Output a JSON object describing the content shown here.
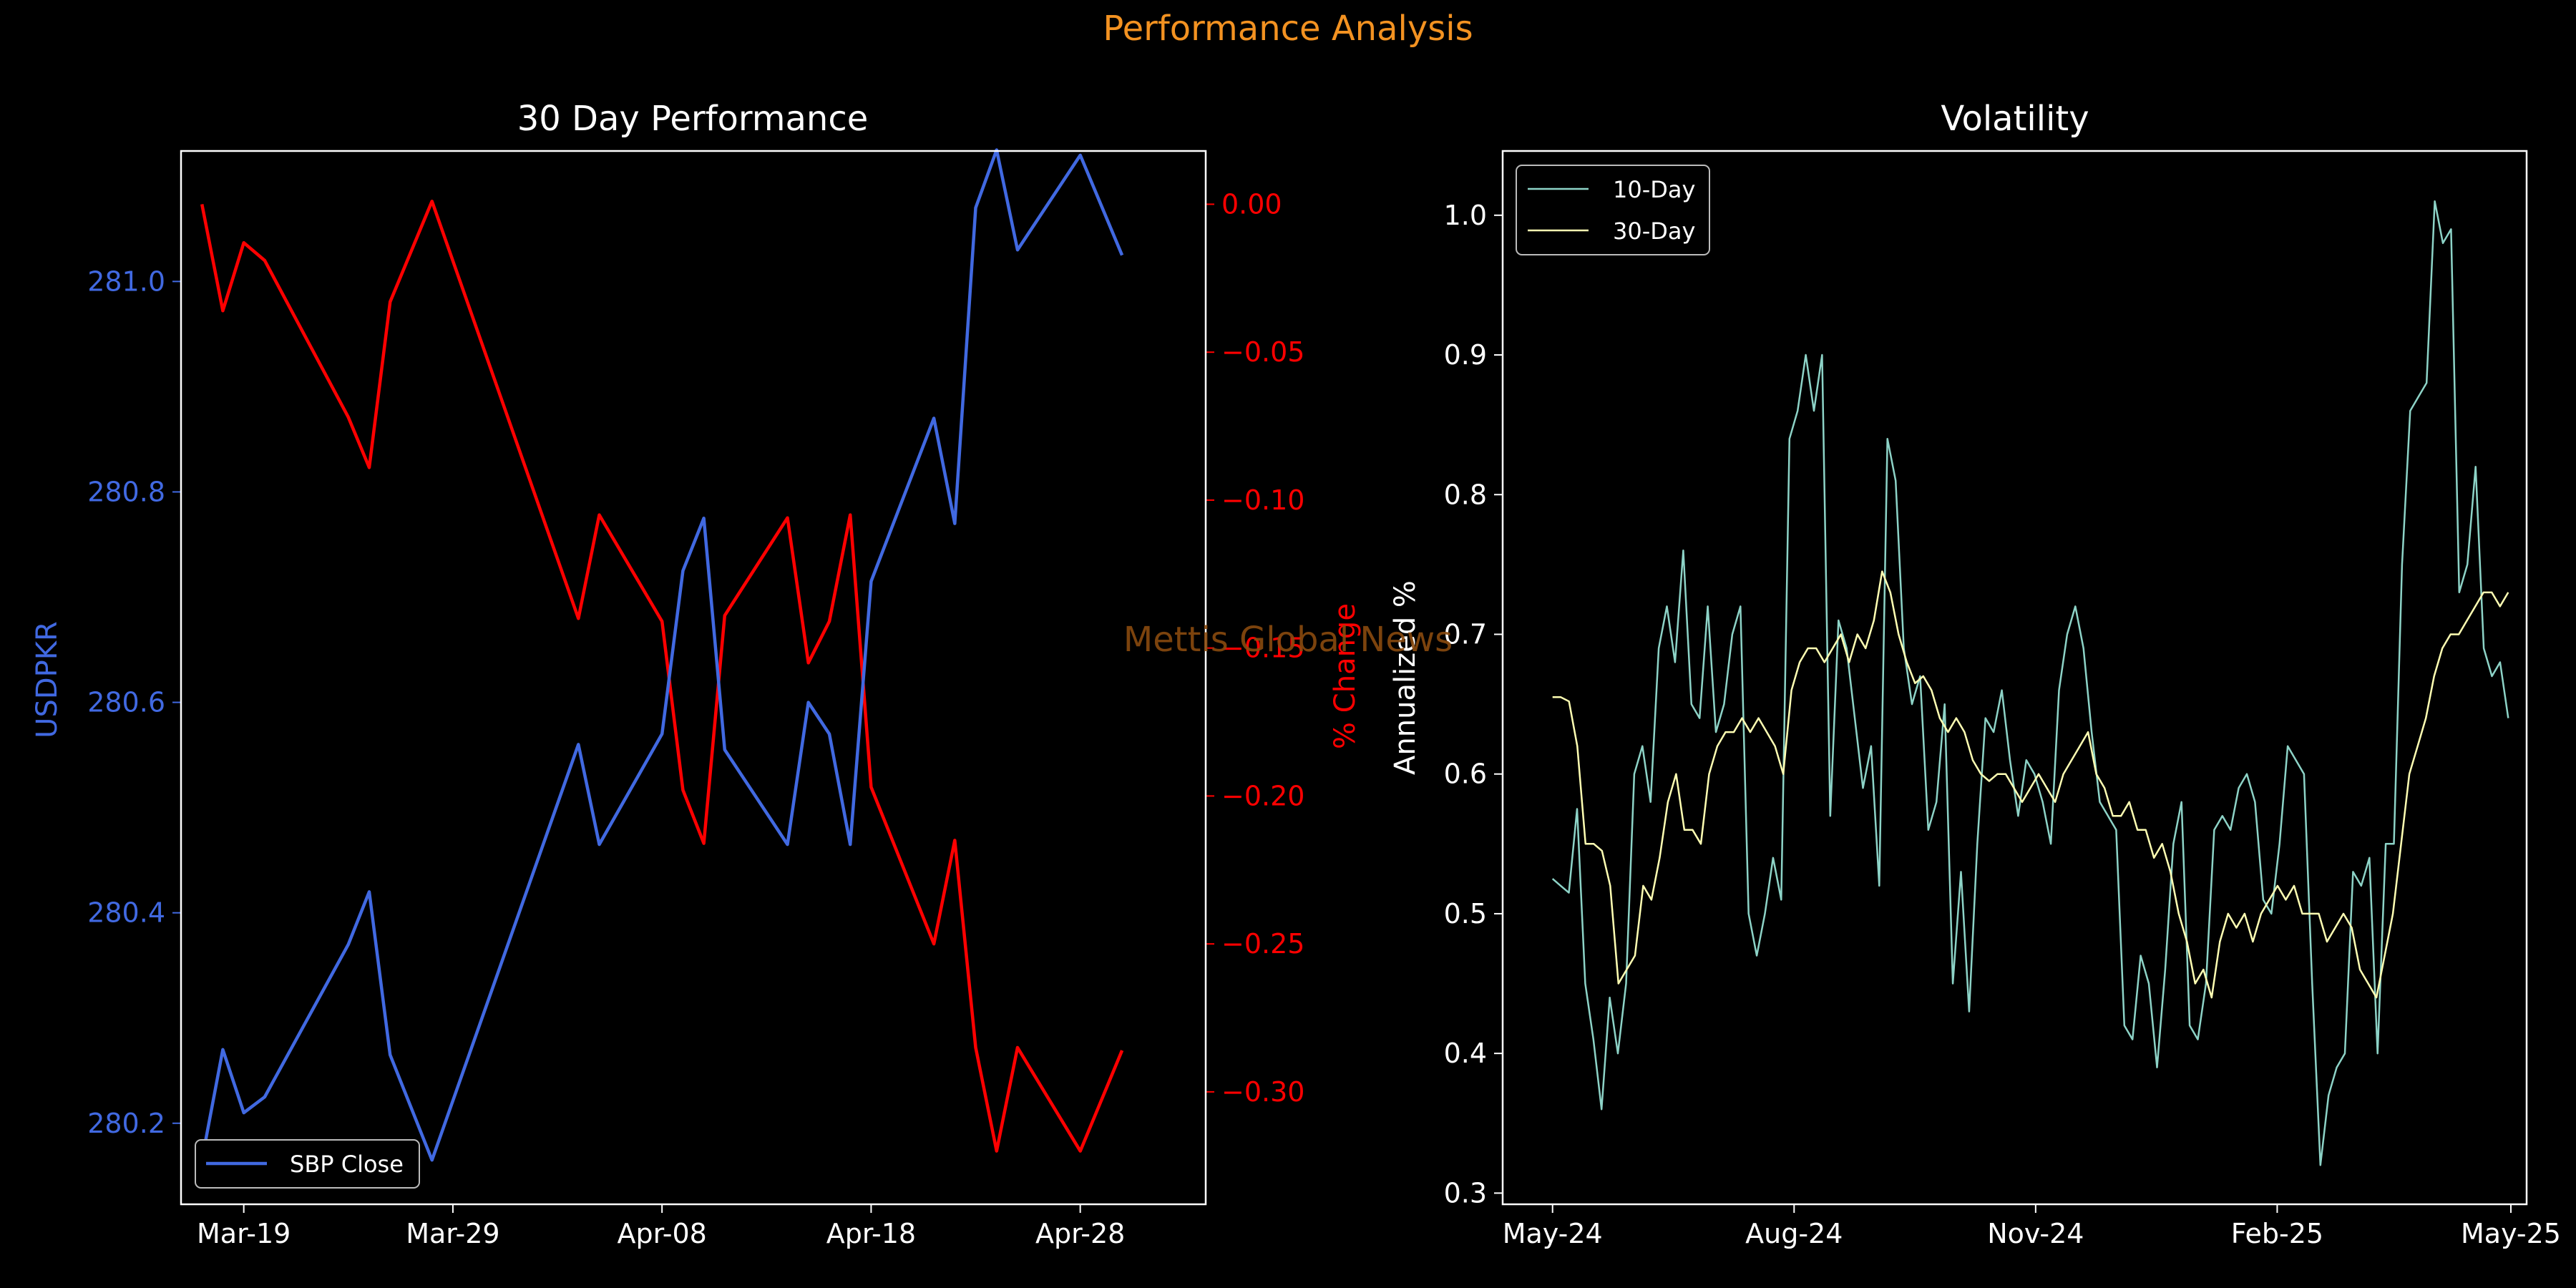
{
  "page": {
    "suptitle": "Performance Analysis",
    "watermark": "Mettis Global News",
    "colors": {
      "background": "#000000",
      "suptitle": "#f39221",
      "watermark": "#8a4b0f",
      "axis": "#ffffff",
      "usdpkr_line": "#4169e1",
      "pct_line": "#ff0000",
      "vol10": "#8dd3c7",
      "vol30": "#ffffb3"
    }
  },
  "chart_data": [
    {
      "type": "line",
      "title": "30 Day Performance",
      "xlabel": "",
      "ylabel": "USDPKR",
      "ylabel_right": "% Change",
      "x_ticks": [
        "Mar-19",
        "Mar-29",
        "Apr-08",
        "Apr-18",
        "Apr-28"
      ],
      "x_tick_values": [
        "2025-03-19",
        "2025-03-29",
        "2025-04-08",
        "2025-04-18",
        "2025-04-28"
      ],
      "xlim": [
        "2025-03-16",
        "2025-05-04"
      ],
      "ylim": [
        280.123,
        281.124
      ],
      "ylim_right": [
        -0.338,
        0.018
      ],
      "y_ticks": [
        "280.2",
        "280.4",
        "280.6",
        "280.8",
        "281.0"
      ],
      "y_tick_values": [
        280.2,
        280.4,
        280.6,
        280.8,
        281.0
      ],
      "y_ticks_right": [
        "0.00",
        "−0.05",
        "−0.10",
        "−0.15",
        "−0.20",
        "−0.25",
        "−0.30"
      ],
      "y_tick_values_right": [
        0,
        -0.05,
        -0.1,
        -0.15,
        -0.2,
        -0.25,
        -0.3
      ],
      "legend": {
        "position": "lower-left",
        "entries": [
          "SBP Close"
        ]
      },
      "x": [
        "2025-03-17",
        "2025-03-18",
        "2025-03-19",
        "2025-03-20",
        "2025-03-24",
        "2025-03-25",
        "2025-03-26",
        "2025-03-28",
        "2025-04-04",
        "2025-04-05",
        "2025-04-08",
        "2025-04-09",
        "2025-04-10",
        "2025-04-11",
        "2025-04-14",
        "2025-04-15",
        "2025-04-16",
        "2025-04-17",
        "2025-04-18",
        "2025-04-21",
        "2025-04-22",
        "2025-04-23",
        "2025-04-24",
        "2025-04-25",
        "2025-04-28",
        "2025-04-30"
      ],
      "series": [
        {
          "name": "SBP Close",
          "axis": "left",
          "values": [
            280.165,
            280.27,
            280.21,
            280.225,
            280.37,
            280.42,
            280.265,
            280.165,
            280.56,
            280.465,
            280.57,
            280.725,
            280.775,
            280.555,
            280.465,
            280.6,
            280.57,
            280.465,
            280.715,
            280.87,
            280.77,
            281.07,
            281.125,
            281.03,
            281.12,
            281.025
          ]
        },
        {
          "name": "",
          "axis": "right",
          "values": [
            0.0,
            -0.036,
            -0.013,
            -0.019,
            -0.072,
            -0.089,
            -0.033,
            0.001,
            -0.14,
            -0.105,
            -0.141,
            -0.198,
            -0.216,
            -0.139,
            -0.106,
            -0.155,
            -0.141,
            -0.105,
            -0.197,
            -0.25,
            -0.215,
            -0.285,
            -0.32,
            -0.285,
            -0.32,
            -0.286
          ]
        }
      ]
    },
    {
      "type": "line",
      "title": "Volatility",
      "xlabel": "",
      "ylabel": "Annualized %",
      "x_ticks": [
        "May-24",
        "Aug-24",
        "Nov-24",
        "Feb-25",
        "May-25"
      ],
      "x_tick_values": [
        "2024-05-01",
        "2024-08-01",
        "2024-11-01",
        "2025-02-01",
        "2025-05-01"
      ],
      "xlim": [
        "2024-04-12",
        "2025-05-07"
      ],
      "ylim": [
        0.292,
        1.046
      ],
      "y_ticks": [
        "0.3",
        "0.4",
        "0.5",
        "0.6",
        "0.7",
        "0.8",
        "0.9",
        "1.0"
      ],
      "y_tick_values": [
        0.3,
        0.4,
        0.5,
        0.6,
        0.7,
        0.8,
        0.9,
        1.0
      ],
      "legend": {
        "position": "top-left",
        "entries": [
          "10-Day",
          "30-Day"
        ]
      },
      "x_start": "2024-05-01",
      "x_end": "2025-04-30",
      "series": [
        {
          "name": "10-Day",
          "values": [
            0.525,
            0.52,
            0.515,
            0.575,
            0.45,
            0.41,
            0.36,
            0.44,
            0.4,
            0.45,
            0.6,
            0.62,
            0.58,
            0.69,
            0.72,
            0.68,
            0.76,
            0.65,
            0.64,
            0.72,
            0.63,
            0.65,
            0.7,
            0.72,
            0.5,
            0.47,
            0.5,
            0.54,
            0.51,
            0.84,
            0.86,
            0.9,
            0.86,
            0.9,
            0.57,
            0.71,
            0.69,
            0.64,
            0.59,
            0.62,
            0.52,
            0.84,
            0.81,
            0.69,
            0.65,
            0.67,
            0.56,
            0.58,
            0.65,
            0.45,
            0.53,
            0.43,
            0.55,
            0.64,
            0.63,
            0.66,
            0.61,
            0.57,
            0.61,
            0.6,
            0.58,
            0.55,
            0.66,
            0.7,
            0.72,
            0.69,
            0.63,
            0.58,
            0.57,
            0.56,
            0.42,
            0.41,
            0.47,
            0.45,
            0.39,
            0.46,
            0.55,
            0.58,
            0.42,
            0.41,
            0.45,
            0.56,
            0.57,
            0.56,
            0.59,
            0.6,
            0.58,
            0.51,
            0.5,
            0.55,
            0.62,
            0.61,
            0.6,
            0.45,
            0.32,
            0.37,
            0.39,
            0.4,
            0.53,
            0.52,
            0.54,
            0.4,
            0.55,
            0.55,
            0.75,
            0.86,
            0.87,
            0.88,
            1.01,
            0.98,
            0.99,
            0.73,
            0.75,
            0.82,
            0.69,
            0.67,
            0.68,
            0.64
          ]
        },
        {
          "name": "30-Day",
          "values": [
            0.655,
            0.655,
            0.652,
            0.62,
            0.55,
            0.55,
            0.545,
            0.52,
            0.45,
            0.46,
            0.47,
            0.52,
            0.51,
            0.54,
            0.58,
            0.6,
            0.56,
            0.56,
            0.55,
            0.6,
            0.62,
            0.63,
            0.63,
            0.64,
            0.63,
            0.64,
            0.63,
            0.62,
            0.6,
            0.66,
            0.68,
            0.69,
            0.69,
            0.68,
            0.69,
            0.7,
            0.68,
            0.7,
            0.69,
            0.71,
            0.745,
            0.73,
            0.7,
            0.68,
            0.665,
            0.67,
            0.66,
            0.64,
            0.63,
            0.64,
            0.63,
            0.61,
            0.6,
            0.595,
            0.6,
            0.6,
            0.59,
            0.58,
            0.59,
            0.6,
            0.59,
            0.58,
            0.6,
            0.61,
            0.62,
            0.63,
            0.6,
            0.59,
            0.57,
            0.57,
            0.58,
            0.56,
            0.56,
            0.54,
            0.55,
            0.53,
            0.5,
            0.48,
            0.45,
            0.46,
            0.44,
            0.48,
            0.5,
            0.49,
            0.5,
            0.48,
            0.5,
            0.51,
            0.52,
            0.51,
            0.52,
            0.5,
            0.5,
            0.5,
            0.48,
            0.49,
            0.5,
            0.49,
            0.46,
            0.45,
            0.44,
            0.47,
            0.5,
            0.55,
            0.6,
            0.62,
            0.64,
            0.67,
            0.69,
            0.7,
            0.7,
            0.71,
            0.72,
            0.73,
            0.73,
            0.72,
            0.73
          ]
        }
      ]
    }
  ]
}
